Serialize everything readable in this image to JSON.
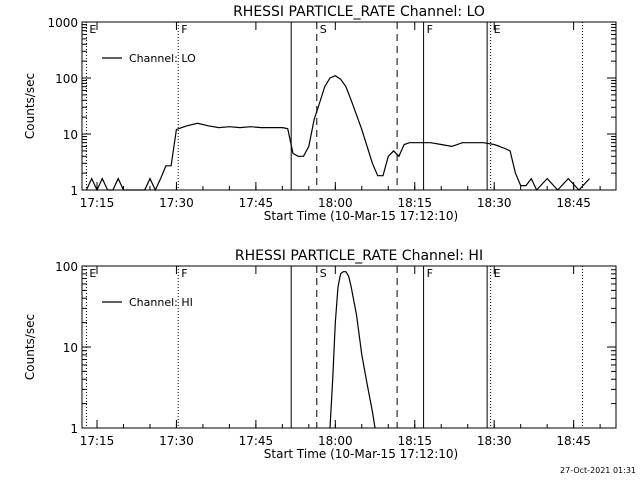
{
  "footer_timestamp": "27-Oct-2021 01:31",
  "chart_data": [
    {
      "type": "line",
      "title": "RHESSI PARTICLE_RATE Channel: LO",
      "xlabel": "Start Time (10-Mar-15 17:12:10)",
      "ylabel": "Counts/sec",
      "yscale": "log",
      "xlim": [
        "17:12:10",
        "18:53:00"
      ],
      "ylim": [
        1,
        1000
      ],
      "x_ticks": [
        "17:15",
        "17:30",
        "17:45",
        "18:00",
        "18:15",
        "18:30",
        "18:45"
      ],
      "y_ticks": [
        "1",
        "10",
        "100",
        "1000"
      ],
      "legend": {
        "position": "top-left",
        "entries": [
          "Channel: LO"
        ]
      },
      "series": [
        {
          "name": "Channel: LO",
          "x": [
            "17:13",
            "17:14",
            "17:15",
            "17:16",
            "17:17",
            "17:18",
            "17:19",
            "17:20",
            "17:21",
            "17:22",
            "17:23",
            "17:24",
            "17:25",
            "17:26",
            "17:27",
            "17:28",
            "17:29",
            "17:30",
            "17:31",
            "17:32",
            "17:34",
            "17:36",
            "17:38",
            "17:40",
            "17:42",
            "17:44",
            "17:46",
            "17:48",
            "17:50",
            "17:51",
            "17:52",
            "17:53",
            "17:54",
            "17:55",
            "17:56",
            "17:57",
            "17:58",
            "17:59",
            "18:00",
            "18:01",
            "18:02",
            "18:03",
            "18:04",
            "18:05",
            "18:06",
            "18:07",
            "18:08",
            "18:09",
            "18:10",
            "18:11",
            "18:12",
            "18:13",
            "18:14",
            "18:16",
            "18:18",
            "18:20",
            "18:22",
            "18:24",
            "18:26",
            "18:28",
            "18:30",
            "18:31",
            "18:32",
            "18:33",
            "18:34",
            "18:35",
            "18:36",
            "18:37",
            "18:38",
            "18:40",
            "18:42",
            "18:44",
            "18:46",
            "18:48"
          ],
          "y": [
            1,
            1.6,
            1,
            1.6,
            1,
            1,
            1.6,
            1,
            1,
            1,
            1,
            1,
            1.6,
            1,
            1.6,
            2.7,
            2.7,
            12,
            13,
            14,
            15.5,
            14,
            13,
            13.5,
            13,
            13.5,
            13,
            13,
            13,
            12.5,
            4.5,
            4,
            4,
            6,
            18,
            35,
            70,
            100,
            110,
            95,
            70,
            40,
            22,
            12,
            6,
            3,
            1.8,
            1.8,
            4,
            5,
            4,
            6.5,
            7,
            7,
            7,
            6.5,
            6,
            7,
            7,
            7,
            6.5,
            6,
            5.5,
            5,
            2,
            1.2,
            1.2,
            1.6,
            1,
            1.6,
            1,
            1.6,
            1,
            1.6
          ]
        }
      ],
      "markers": [
        {
          "label": "E",
          "time": "17:13",
          "style": "dotted"
        },
        {
          "label": "F",
          "time": "17:30:20",
          "style": "dotted"
        },
        {
          "label": "",
          "time": "17:51:40",
          "style": "solid"
        },
        {
          "label": "S",
          "time": "17:56:30",
          "style": "dashed"
        },
        {
          "label": "",
          "time": "18:11:40",
          "style": "dashed"
        },
        {
          "label": "F",
          "time": "18:16:40",
          "style": "solid"
        },
        {
          "label": "",
          "time": "18:28:40",
          "style": "solid"
        },
        {
          "label": "E",
          "time": "18:29:20",
          "style": "dotted"
        },
        {
          "label": "",
          "time": "18:46:40",
          "style": "dotted"
        }
      ]
    },
    {
      "type": "line",
      "title": "RHESSI PARTICLE_RATE Channel: HI",
      "xlabel": "Start Time (10-Mar-15 17:12:10)",
      "ylabel": "Counts/sec",
      "yscale": "log",
      "xlim": [
        "17:12:10",
        "18:53:00"
      ],
      "ylim": [
        1,
        100
      ],
      "x_ticks": [
        "17:15",
        "17:30",
        "17:45",
        "18:00",
        "18:15",
        "18:30",
        "18:45"
      ],
      "y_ticks": [
        "1",
        "10",
        "100"
      ],
      "legend": {
        "position": "top-left",
        "entries": [
          "Channel: HI"
        ]
      },
      "series": [
        {
          "name": "Channel: HI",
          "x": [
            "17:59",
            "17:59:30",
            "18:00",
            "18:00:30",
            "18:01",
            "18:01:30",
            "18:02",
            "18:02:30",
            "18:03",
            "18:04",
            "18:05",
            "18:06",
            "18:07",
            "18:07:30"
          ],
          "y": [
            1,
            4,
            20,
            55,
            80,
            85,
            85,
            75,
            55,
            25,
            8,
            3.5,
            1.6,
            1
          ]
        }
      ],
      "markers": [
        {
          "label": "E",
          "time": "17:13",
          "style": "dotted"
        },
        {
          "label": "F",
          "time": "17:30:20",
          "style": "dotted"
        },
        {
          "label": "",
          "time": "17:51:40",
          "style": "solid"
        },
        {
          "label": "S",
          "time": "17:56:30",
          "style": "dashed"
        },
        {
          "label": "",
          "time": "18:11:40",
          "style": "dashed"
        },
        {
          "label": "F",
          "time": "18:16:40",
          "style": "solid"
        },
        {
          "label": "",
          "time": "18:28:40",
          "style": "solid"
        },
        {
          "label": "E",
          "time": "18:29:20",
          "style": "dotted"
        },
        {
          "label": "",
          "time": "18:46:40",
          "style": "dotted"
        }
      ]
    }
  ]
}
